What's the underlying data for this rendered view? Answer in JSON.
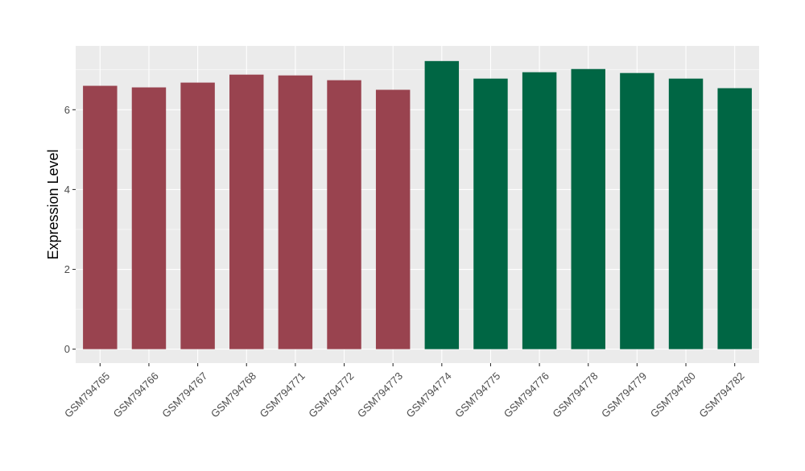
{
  "chart_data": {
    "type": "bar",
    "ylabel": "Expression Level",
    "xlabel": "",
    "ylim": [
      -0.35,
      7.6
    ],
    "yticks": [
      0,
      2,
      4,
      6
    ],
    "grid": true,
    "background_color": "#ebebeb",
    "grid_color": "#ffffff",
    "categories": [
      "GSM794765",
      "GSM794766",
      "GSM794767",
      "GSM794768",
      "GSM794771",
      "GSM794772",
      "GSM794773",
      "GSM794774",
      "GSM794775",
      "GSM794776",
      "GSM794778",
      "GSM794779",
      "GSM794780",
      "GSM794782"
    ],
    "values": [
      6.6,
      6.56,
      6.68,
      6.88,
      6.86,
      6.74,
      6.5,
      7.22,
      6.78,
      6.94,
      7.02,
      6.92,
      6.78,
      6.54
    ],
    "bar_colors": [
      "#99434f",
      "#99434f",
      "#99434f",
      "#99434f",
      "#99434f",
      "#99434f",
      "#99434f",
      "#006644",
      "#006644",
      "#006644",
      "#006644",
      "#006644",
      "#006644",
      "#006644"
    ]
  }
}
